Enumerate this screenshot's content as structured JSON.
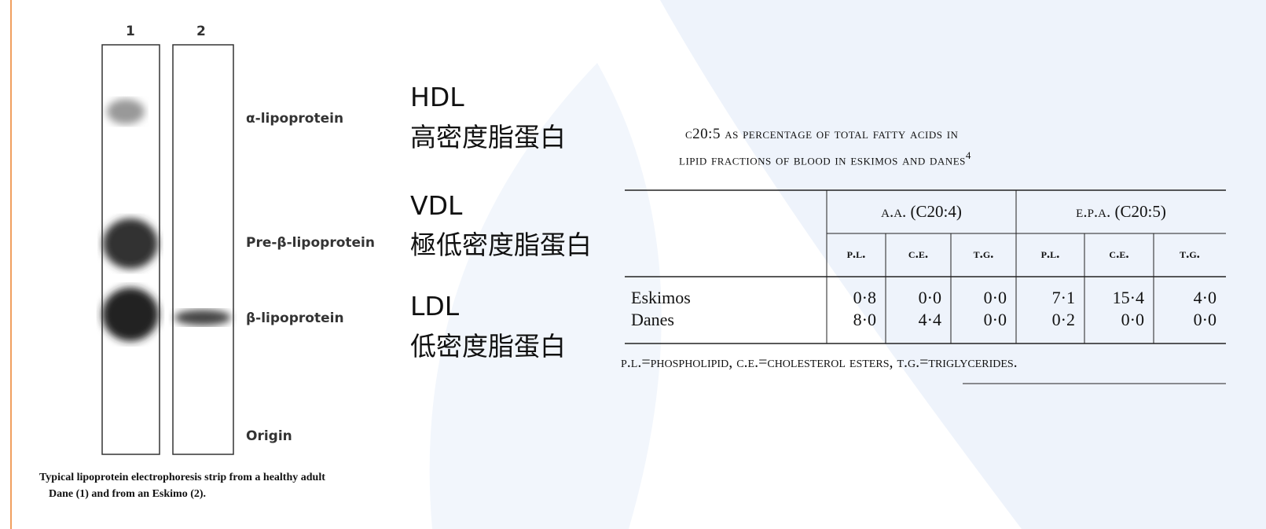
{
  "figure": {
    "lanes": [
      "1",
      "2"
    ],
    "bands": [
      "α-lipoprotein",
      "Pre-β-lipoprotein",
      "β-lipoprotein",
      "Origin"
    ],
    "caption": [
      "Typical lipoprotein electrophoresis strip from a healthy adult",
      "Dane (1) and from an Eskimo (2)."
    ]
  },
  "labels": [
    {
      "abbr": "HDL",
      "name": "高密度脂蛋白"
    },
    {
      "abbr": "VDL",
      "name": "極低密度脂蛋白"
    },
    {
      "abbr": "LDL",
      "name": "低密度脂蛋白"
    }
  ],
  "table": {
    "title": [
      "c20:5 as percentage of total fatty acids in",
      "lipid fractions of blood in eskimos and danes"
    ],
    "footnote_ref": "4",
    "groups": [
      "a.a. (C20:4)",
      "e.p.a. (C20:5)"
    ],
    "columns": [
      "p.l.",
      "c.e.",
      "t.g.",
      "p.l.",
      "c.e.",
      "t.g."
    ],
    "rows": [
      [
        "Eskimos",
        "0·8",
        "0·0",
        "0·0",
        "7·1",
        "15·4",
        "4·0"
      ],
      [
        "Danes",
        "8·0",
        "4·4",
        "0·0",
        "0·2",
        "0·0",
        "0·0"
      ]
    ],
    "note": "p.l.=phospholipid, c.e.=cholesterol esters, t.g.=triglycerides."
  }
}
